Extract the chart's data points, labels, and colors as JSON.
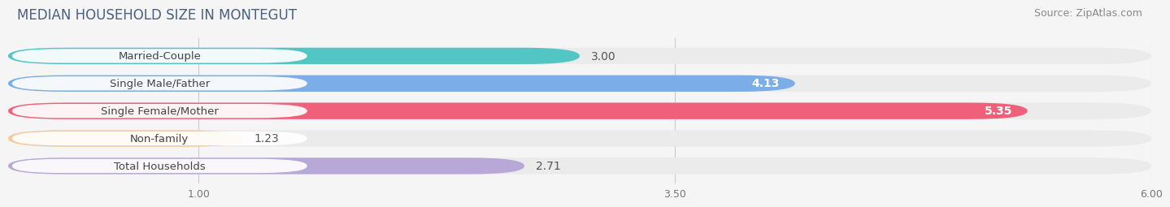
{
  "title": "MEDIAN HOUSEHOLD SIZE IN MONTEGUT",
  "source": "Source: ZipAtlas.com",
  "categories": [
    "Married-Couple",
    "Single Male/Father",
    "Single Female/Mother",
    "Non-family",
    "Total Households"
  ],
  "values": [
    3.0,
    4.13,
    5.35,
    1.23,
    2.71
  ],
  "bar_colors": [
    "#52c5c5",
    "#7baee8",
    "#f0607a",
    "#f5c899",
    "#b8a8d8"
  ],
  "bar_bg_color": "#e8e8e8",
  "xlim_data": [
    0.0,
    6.0
  ],
  "xmin": 1.0,
  "xmax": 6.0,
  "xticks": [
    1.0,
    3.5,
    6.0
  ],
  "label_colors": [
    "#333333",
    "#ffffff",
    "#ffffff",
    "#333333",
    "#333333"
  ],
  "value_inside": [
    false,
    true,
    true,
    false,
    false
  ],
  "title_fontsize": 12,
  "source_fontsize": 9,
  "label_fontsize": 10,
  "category_fontsize": 9.5,
  "background_color": "#f5f5f5",
  "bar_bg_light": "#ebebeb"
}
